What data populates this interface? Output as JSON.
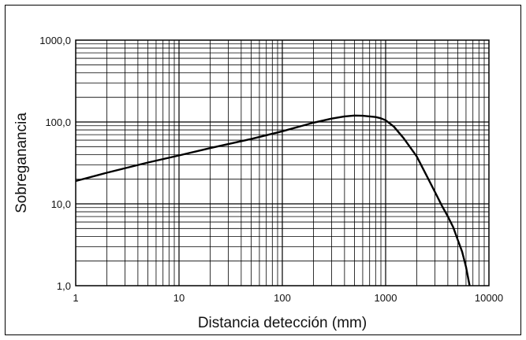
{
  "chart_data": {
    "type": "line",
    "title": "",
    "xlabel": "Distancia detección (mm)",
    "ylabel": "Sobreganancia",
    "x_scale": "log",
    "y_scale": "log",
    "xlim": [
      1,
      10000
    ],
    "ylim": [
      1,
      1000
    ],
    "grid": true,
    "legend": "none",
    "x_ticks": [
      1,
      10,
      100,
      1000,
      10000
    ],
    "x_tick_labels": [
      "1",
      "10",
      "100",
      "1000",
      "10000"
    ],
    "y_ticks": [
      1,
      10,
      100,
      1000
    ],
    "y_tick_labels": [
      "1,0",
      "10,0",
      "100,0",
      "1000,0"
    ],
    "series": [
      {
        "name": "",
        "color": "#000000",
        "x": [
          1,
          2,
          5,
          10,
          20,
          50,
          100,
          200,
          300,
          400,
          500,
          600,
          700,
          800,
          900,
          1000,
          1200,
          1500,
          2000,
          2500,
          3000,
          3500,
          4000,
          4500,
          5000,
          5500,
          6000,
          6500
        ],
        "y": [
          19,
          24,
          32,
          39,
          48,
          62,
          77,
          98,
          110,
          117,
          120,
          119,
          117,
          115,
          111,
          105,
          88,
          63,
          38,
          22,
          14,
          9.5,
          7,
          5.2,
          3.6,
          2.6,
          1.7,
          1.0
        ]
      }
    ]
  }
}
